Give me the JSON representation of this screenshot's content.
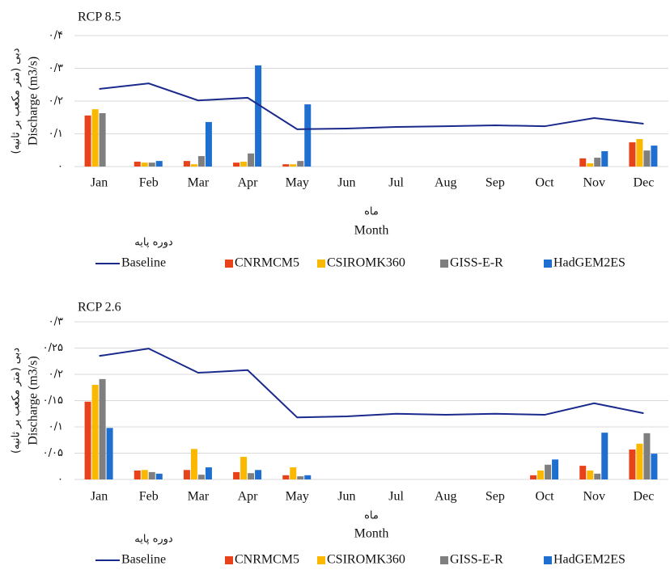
{
  "chart_data": [
    {
      "type": "bar",
      "title": "RCP 8.5",
      "y_label_fa": "دبی (متر مکعب بر ثانیه)",
      "y_label": "Discharge (m3/s)",
      "x_label_fa": "ماه",
      "x_label": "Month",
      "legend_note": "دوره پایه",
      "categories": [
        "Jan",
        "Feb",
        "Mar",
        "Apr",
        "May",
        "Jun",
        "Jul",
        "Aug",
        "Sep",
        "Oct",
        "Nov",
        "Dec"
      ],
      "ylim": [
        0,
        0.4
      ],
      "yticks": [
        {
          "value": 0,
          "label": "۰"
        },
        {
          "value": 0.1,
          "label": "۰/۱"
        },
        {
          "value": 0.2,
          "label": "۰/۲"
        },
        {
          "value": 0.3,
          "label": "۰/۳"
        },
        {
          "value": 0.4,
          "label": "۰/۴"
        }
      ],
      "grid": true,
      "series": [
        {
          "name": "Baseline",
          "type": "line",
          "color": "#1a2a8c",
          "values": [
            0.237,
            0.254,
            0.202,
            0.21,
            0.114,
            0.116,
            0.121,
            0.123,
            0.126,
            0.123,
            0.148,
            0.131
          ]
        },
        {
          "name": "CNRMCM5",
          "color": "#e8421a",
          "values": [
            0.156,
            0.015,
            0.017,
            0.012,
            0.007,
            null,
            null,
            null,
            null,
            null,
            0.025,
            0.074
          ]
        },
        {
          "name": "CSIROMK360",
          "color": "#fbb800",
          "values": [
            0.175,
            0.012,
            0.007,
            0.015,
            0.007,
            null,
            null,
            null,
            null,
            null,
            0.01,
            0.084
          ]
        },
        {
          "name": "GISS-E-R",
          "color": "#7f7f7f",
          "values": [
            0.163,
            0.012,
            0.032,
            0.04,
            0.017,
            null,
            null,
            null,
            null,
            null,
            0.027,
            0.049
          ]
        },
        {
          "name": "HadGEM2ES",
          "color": "#1f6fd1",
          "values": [
            null,
            0.017,
            0.136,
            0.309,
            0.19,
            null,
            null,
            null,
            null,
            null,
            0.047,
            0.064
          ]
        }
      ]
    },
    {
      "type": "bar",
      "title": "RCP 2.6",
      "y_label_fa": "دبی (متر مکعب بر ثانیه)",
      "y_label": "Discharge (m3/s)",
      "x_label_fa": "ماه",
      "x_label": "Month",
      "legend_note": "دوره پایه",
      "categories": [
        "Jan",
        "Feb",
        "Mar",
        "Apr",
        "May",
        "Jun",
        "Jul",
        "Aug",
        "Sep",
        "Oct",
        "Nov",
        "Dec"
      ],
      "ylim": [
        0,
        0.3
      ],
      "yticks": [
        {
          "value": 0,
          "label": "۰"
        },
        {
          "value": 0.05,
          "label": "۰/۰۵"
        },
        {
          "value": 0.1,
          "label": "۰/۱"
        },
        {
          "value": 0.15,
          "label": "۰/۱۵"
        },
        {
          "value": 0.2,
          "label": "۰/۲"
        },
        {
          "value": 0.25,
          "label": "۰/۲۵"
        },
        {
          "value": 0.3,
          "label": "۰/۳"
        }
      ],
      "grid": true,
      "series": [
        {
          "name": "Baseline",
          "type": "line",
          "color": "#1a2a8c",
          "values": [
            0.235,
            0.249,
            0.203,
            0.208,
            0.118,
            0.12,
            0.125,
            0.123,
            0.125,
            0.123,
            0.145,
            0.126
          ]
        },
        {
          "name": "CNRMCM5",
          "color": "#e8421a",
          "values": [
            0.148,
            0.017,
            0.018,
            0.014,
            0.008,
            null,
            null,
            null,
            null,
            0.008,
            0.026,
            0.057
          ]
        },
        {
          "name": "CSIROMK360",
          "color": "#fbb800",
          "values": [
            0.18,
            0.018,
            0.058,
            0.043,
            0.023,
            null,
            null,
            null,
            null,
            0.017,
            0.017,
            0.068
          ]
        },
        {
          "name": "GISS-E-R",
          "color": "#7f7f7f",
          "values": [
            0.191,
            0.014,
            0.009,
            0.012,
            0.006,
            null,
            null,
            null,
            null,
            0.028,
            0.011,
            0.088
          ]
        },
        {
          "name": "HadGEM2ES",
          "color": "#1f6fd1",
          "values": [
            0.098,
            0.011,
            0.023,
            0.018,
            0.008,
            null,
            null,
            null,
            null,
            0.038,
            0.089,
            0.049
          ]
        }
      ]
    }
  ]
}
